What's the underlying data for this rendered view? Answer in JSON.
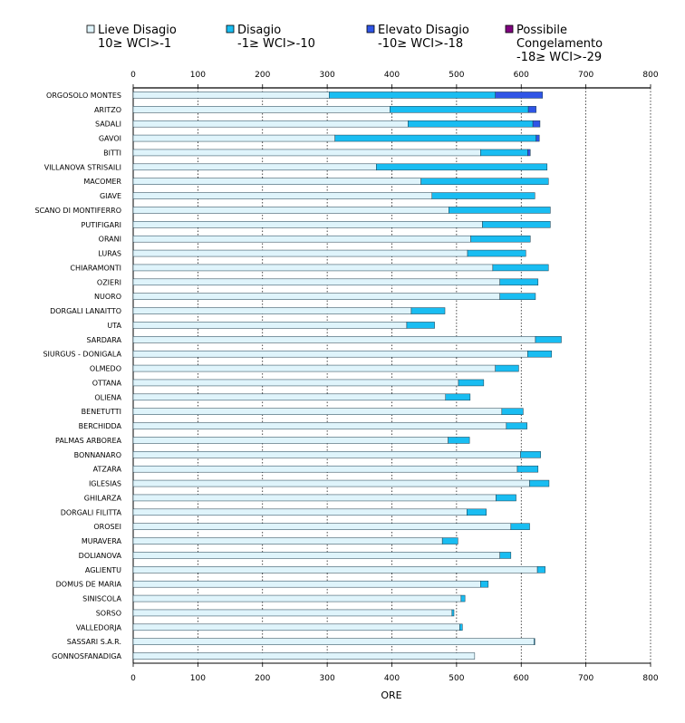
{
  "chart_data": {
    "type": "bar",
    "orientation": "horizontal",
    "stacked": true,
    "title": "",
    "xlabel": "ORE",
    "xlim": [
      0,
      800
    ],
    "xticks": [
      0,
      100,
      200,
      300,
      400,
      500,
      600,
      700,
      800
    ],
    "legend_position": "top",
    "legend": [
      {
        "name": "Lieve Disagio",
        "range": "10≥ WCI>-1",
        "color": "#dff4fb"
      },
      {
        "name": "Disagio",
        "range": "-1≥ WCI>-10",
        "color": "#19bdf2"
      },
      {
        "name": "Elevato Disagio",
        "range": "-10≥ WCI>-18",
        "color": "#2f55e6"
      },
      {
        "name": "Possibile",
        "name2": "Congelamento",
        "range": "-18≥ WCI>-29",
        "color": "#800080"
      }
    ],
    "categories": [
      "ORGOSOLO MONTES",
      "ARITZO",
      "SADALI",
      "GAVOI",
      "BITTI",
      "VILLANOVA STRISAILI",
      "MACOMER",
      "GIAVE",
      "SCANO DI MONTIFERRO",
      "PUTIFIGARI",
      "ORANI",
      "LURAS",
      "CHIARAMONTI",
      "OZIERI",
      "NUORO",
      "DORGALI LANAITTO",
      "UTA",
      "SARDARA",
      "SIURGUS - DONIGALA",
      "OLMEDO",
      "OTTANA",
      "OLIENA",
      "BENETUTTI",
      "BERCHIDDA",
      "PALMAS ARBOREA",
      "BONNANARO",
      "ATZARA",
      "IGLESIAS",
      "GHILARZA",
      "DORGALI FILITTA",
      "OROSEI",
      "MURAVERA",
      "DOLIANOVA",
      "AGLIENTU",
      "DOMUS DE MARIA",
      "SINISCOLA",
      "SORSO",
      "VALLEDORJA",
      "SASSARI S.A.R.",
      "GONNOSFANADIGA"
    ],
    "series": [
      {
        "name": "Lieve Disagio",
        "values": [
          303,
          397,
          425,
          312,
          537,
          376,
          445,
          462,
          488,
          540,
          522,
          517,
          556,
          567,
          567,
          430,
          423,
          622,
          610,
          560,
          503,
          483,
          570,
          577,
          487,
          599,
          594,
          613,
          561,
          516,
          584,
          478,
          567,
          625,
          537,
          507,
          493,
          505,
          620,
          528
        ]
      },
      {
        "name": "Disagio",
        "values": [
          257,
          214,
          193,
          311,
          73,
          264,
          197,
          159,
          157,
          105,
          92,
          90,
          86,
          59,
          55,
          52,
          43,
          40,
          37,
          36,
          39,
          38,
          33,
          32,
          33,
          31,
          32,
          30,
          31,
          30,
          29,
          24,
          17,
          12,
          12,
          6,
          3,
          4,
          1,
          0
        ]
      },
      {
        "name": "Elevato Disagio",
        "values": [
          73,
          12,
          11,
          5,
          4,
          0,
          0,
          0,
          0,
          0,
          0,
          0,
          0,
          0,
          0,
          0,
          0,
          0,
          0,
          0,
          0,
          0,
          0,
          0,
          0,
          0,
          0,
          0,
          0,
          0,
          0,
          0,
          0,
          0,
          0,
          0,
          0,
          0,
          0,
          0
        ]
      },
      {
        "name": "Possibile Congelamento",
        "values": [
          0,
          0,
          0,
          0,
          0,
          0,
          0,
          0,
          0,
          0,
          0,
          0,
          0,
          0,
          0,
          0,
          0,
          0,
          0,
          0,
          0,
          0,
          0,
          0,
          0,
          0,
          0,
          0,
          0,
          0,
          0,
          0,
          0,
          0,
          0,
          0,
          0,
          0,
          0,
          0
        ]
      }
    ]
  }
}
